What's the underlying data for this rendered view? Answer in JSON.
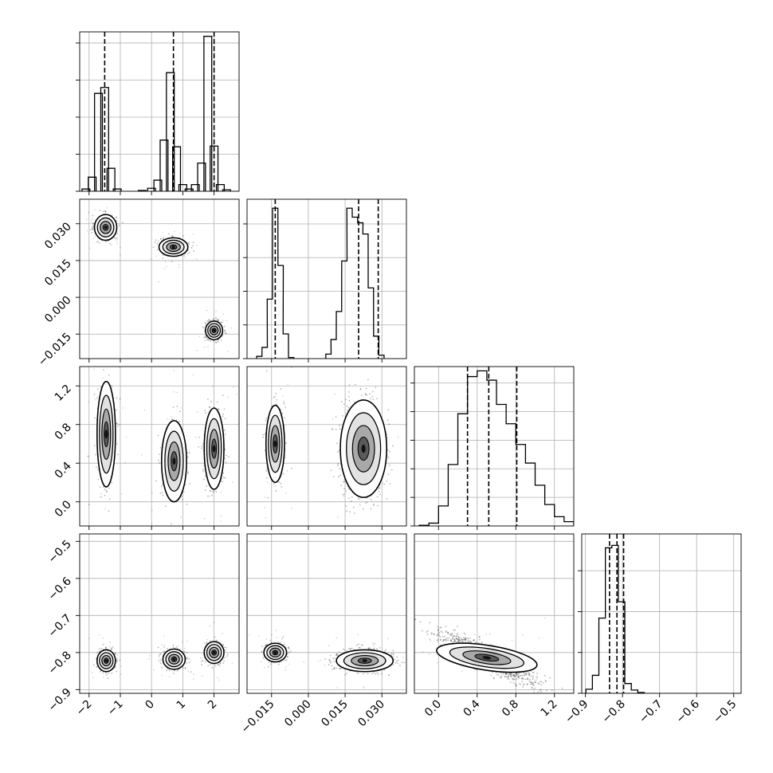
{
  "chart_data": {
    "type": "corner",
    "grid": true,
    "histograms": [
      {
        "param": 0,
        "range": [
          -2.3,
          2.8
        ],
        "bins": [
          [
            -2.1,
            0.3
          ],
          [
            -1.9,
            1.9
          ],
          [
            -1.7,
            13.2
          ],
          [
            -1.5,
            14.0
          ],
          [
            -1.3,
            3.1
          ],
          [
            -1.1,
            0.3
          ],
          [
            -0.3,
            0.1
          ],
          [
            0.0,
            0.4
          ],
          [
            0.2,
            1.5
          ],
          [
            0.4,
            6.9
          ],
          [
            0.6,
            16.0
          ],
          [
            0.8,
            6.0
          ],
          [
            1.0,
            0.9
          ],
          [
            1.2,
            0.3
          ],
          [
            1.4,
            0.9
          ],
          [
            1.6,
            3.8
          ],
          [
            1.8,
            20.9
          ],
          [
            2.0,
            6.1
          ],
          [
            2.2,
            0.9
          ],
          [
            2.4,
            0.2
          ]
        ],
        "bin_width": 0.25,
        "ymax": 21.5,
        "quantiles": [
          -1.5,
          0.7,
          2.0
        ],
        "xticks": [
          -2,
          -1,
          0,
          1,
          2
        ],
        "xticklabels": [
          "−2",
          "−1",
          "0",
          "1",
          "2"
        ],
        "yticks": [
          0,
          5,
          10,
          15,
          20
        ]
      },
      {
        "param": 1,
        "range": [
          -0.025,
          0.04
        ],
        "bins": [
          [
            -0.02,
            0.2
          ],
          [
            -0.0178,
            1.0
          ],
          [
            -0.0157,
            5.3
          ],
          [
            -0.0135,
            13.4
          ],
          [
            -0.0113,
            8.3
          ],
          [
            -0.0092,
            2.2
          ],
          [
            -0.007,
            0.1
          ],
          [
            0.0082,
            0.4
          ],
          [
            0.0103,
            1.7
          ],
          [
            0.0125,
            4.2
          ],
          [
            0.0147,
            8.7
          ],
          [
            0.0168,
            13.4
          ],
          [
            0.019,
            12.6
          ],
          [
            0.0212,
            12.1
          ],
          [
            0.0233,
            11.1
          ],
          [
            0.0255,
            6.3
          ],
          [
            0.0277,
            2.0
          ],
          [
            0.0298,
            0.3
          ]
        ],
        "bin_width": 0.00217,
        "ymax": 14.2,
        "quantiles": [
          -0.0135,
          0.0205,
          0.0285
        ],
        "xticks": [
          -0.015,
          0.0,
          0.015,
          0.03
        ],
        "xticklabels": [
          "−0.015",
          "0.000",
          "0.015",
          "0.030"
        ],
        "yticks": [
          0,
          3,
          6,
          9,
          12
        ]
      },
      {
        "param": 2,
        "range": [
          -0.25,
          1.4
        ],
        "bins": [
          [
            -0.15,
            0.1
          ],
          [
            -0.05,
            0.4
          ],
          [
            0.05,
            2.8
          ],
          [
            0.15,
            8.6
          ],
          [
            0.25,
            15.7
          ],
          [
            0.35,
            20.9
          ],
          [
            0.45,
            21.7
          ],
          [
            0.55,
            20.4
          ],
          [
            0.65,
            17.0
          ],
          [
            0.75,
            14.3
          ],
          [
            0.85,
            11.4
          ],
          [
            0.95,
            8.8
          ],
          [
            1.05,
            5.7
          ],
          [
            1.15,
            3.0
          ],
          [
            1.25,
            1.3
          ],
          [
            1.35,
            0.6
          ]
        ],
        "bin_width": 0.1,
        "ymax": 22.3,
        "quantiles": [
          0.3,
          0.52,
          0.81
        ],
        "xticks": [
          0.0,
          0.4,
          0.8,
          1.2
        ],
        "xticklabels": [
          "0.0",
          "0.4",
          "0.8",
          "1.2"
        ],
        "yticks": [
          0,
          4,
          8,
          12,
          16,
          20
        ]
      },
      {
        "param": 3,
        "range": [
          -0.91,
          -0.48
        ],
        "bins": [
          [
            -0.89,
            0.5
          ],
          [
            -0.8725,
            2.2
          ],
          [
            -0.855,
            9.2
          ],
          [
            -0.8375,
            17.8
          ],
          [
            -0.82,
            18.1
          ],
          [
            -0.8025,
            11.2
          ],
          [
            -0.785,
            1.2
          ],
          [
            -0.7675,
            0.4
          ],
          [
            -0.75,
            0.1
          ]
        ],
        "bin_width": 0.0175,
        "ymax": 19.5,
        "quantiles": [
          -0.835,
          -0.815,
          -0.797
        ],
        "xticks": [
          -0.9,
          -0.8,
          -0.7,
          -0.6,
          -0.5
        ],
        "xticklabels": [
          "−0.9",
          "−0.8",
          "−0.7",
          "−0.6",
          "−0.5"
        ],
        "yticks": [
          0,
          5,
          10,
          15
        ]
      }
    ],
    "pair_panels": [
      {
        "x_param": 0,
        "y_param": 1,
        "xrange": [
          -2.3,
          2.8
        ],
        "yrange": [
          -0.025,
          0.04
        ],
        "clusters": [
          {
            "cx": -1.47,
            "cy": 0.0285,
            "sx": 0.17,
            "sy": 0.0025,
            "n": 380
          },
          {
            "cx": 0.7,
            "cy": 0.0205,
            "sx": 0.22,
            "sy": 0.0018,
            "n": 420
          },
          {
            "cx": 2.0,
            "cy": -0.0135,
            "sx": 0.13,
            "sy": 0.0018,
            "n": 460
          }
        ],
        "yticks": [
          -0.015,
          0.0,
          0.015,
          0.03
        ],
        "yticklabels": [
          "−0.015",
          "0.000",
          "0.015",
          "0.030"
        ]
      },
      {
        "x_param": 0,
        "y_param": 2,
        "xrange": [
          -2.3,
          2.8
        ],
        "yrange": [
          -0.25,
          1.4
        ],
        "clusters": [
          {
            "cx": -1.45,
            "cy": 0.7,
            "sx": 0.14,
            "sy": 0.26,
            "n": 420
          },
          {
            "cx": 0.72,
            "cy": 0.42,
            "sx": 0.19,
            "sy": 0.2,
            "n": 420
          },
          {
            "cx": 2.0,
            "cy": 0.55,
            "sx": 0.15,
            "sy": 0.2,
            "n": 460
          }
        ],
        "yticks": [
          0.0,
          0.4,
          0.8,
          1.2
        ],
        "yticklabels": [
          "0.0",
          "0.4",
          "0.8",
          "1.2"
        ]
      },
      {
        "x_param": 1,
        "y_param": 2,
        "xrange": [
          -0.025,
          0.04
        ],
        "yrange": [
          -0.25,
          1.4
        ],
        "clusters": [
          {
            "cx": -0.0135,
            "cy": 0.6,
            "sx": 0.0018,
            "sy": 0.19,
            "n": 420
          },
          {
            "cx": 0.0225,
            "cy": 0.55,
            "sx": 0.0045,
            "sy": 0.24,
            "n": 820
          }
        ]
      },
      {
        "x_param": 0,
        "y_param": 3,
        "xrange": [
          -2.3,
          2.8
        ],
        "yrange": [
          -0.91,
          -0.48
        ],
        "clusters": [
          {
            "cx": -1.45,
            "cy": -0.822,
            "sx": 0.14,
            "sy": 0.014,
            "n": 380
          },
          {
            "cx": 0.72,
            "cy": -0.818,
            "sx": 0.17,
            "sy": 0.013,
            "n": 420
          },
          {
            "cx": 2.0,
            "cy": -0.8,
            "sx": 0.15,
            "sy": 0.014,
            "n": 460
          }
        ],
        "yticks": [
          -0.9,
          -0.8,
          -0.7,
          -0.6,
          -0.5
        ],
        "yticklabels": [
          "−0.9",
          "−0.8",
          "−0.7",
          "−0.6",
          "−0.5"
        ]
      },
      {
        "x_param": 1,
        "y_param": 3,
        "xrange": [
          -0.025,
          0.04
        ],
        "yrange": [
          -0.91,
          -0.48
        ],
        "clusters": [
          {
            "cx": -0.0135,
            "cy": -0.8,
            "sx": 0.0022,
            "sy": 0.012,
            "n": 420
          },
          {
            "cx": 0.023,
            "cy": -0.822,
            "sx": 0.0055,
            "sy": 0.014,
            "n": 820
          }
        ]
      },
      {
        "x_param": 2,
        "y_param": 3,
        "xrange": [
          -0.25,
          1.4
        ],
        "yrange": [
          -0.91,
          -0.48
        ],
        "clusters": [
          {
            "cx": 0.5,
            "cy": -0.814,
            "sx": 0.25,
            "sy": 0.016,
            "n": 1200,
            "slope": -0.03
          }
        ]
      }
    ]
  }
}
